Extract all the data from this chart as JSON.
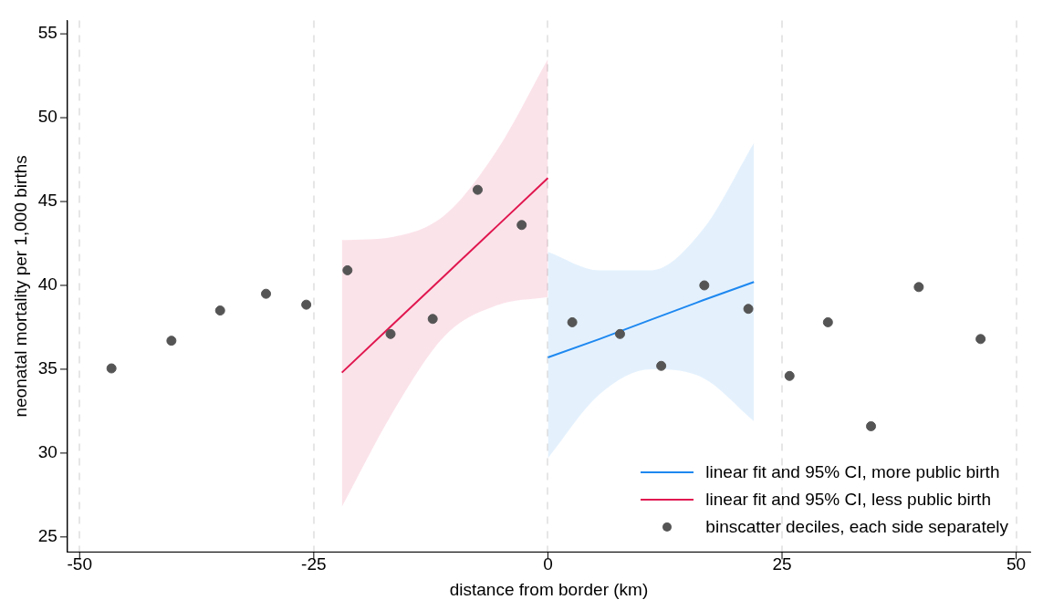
{
  "chart_data": {
    "type": "scatter",
    "xlabel": "distance from border (km)",
    "ylabel": "neonatal mortality per 1,000 births",
    "xlim": [
      -51.3,
      51.5
    ],
    "ylim": [
      24.1,
      55.8
    ],
    "xticks": [
      -50,
      -25,
      0,
      25,
      50
    ],
    "yticks": [
      25,
      30,
      35,
      40,
      45,
      50,
      55
    ],
    "grid": "x",
    "legend": "bottom right",
    "series": [
      {
        "name": "linear fit and 95% CI, more public birth",
        "type": "line",
        "color": "#1e88f0",
        "marker": "none",
        "x": [
          0,
          5.5,
          11,
          16.5,
          22
        ],
        "values": [
          35.7,
          36.8,
          37.95,
          39.1,
          40.2
        ],
        "lower": [
          29.7,
          33.5,
          35.0,
          34.5,
          31.9
        ],
        "upper": [
          42.0,
          40.9,
          40.9,
          43.3,
          48.5
        ]
      },
      {
        "name": "linear fit and 95% CI, less public birth",
        "type": "line",
        "color": "#e0174f",
        "marker": "none",
        "x": [
          -22,
          -16.5,
          -11,
          -5.5,
          0
        ],
        "values": [
          34.8,
          37.7,
          40.6,
          43.5,
          46.4
        ],
        "lower": [
          26.8,
          32.5,
          37.0,
          38.8,
          39.3
        ],
        "upper": [
          42.7,
          42.9,
          44.2,
          48.0,
          53.5
        ]
      },
      {
        "name": "binscatter deciles, each side separately",
        "type": "scatter",
        "color": "#555555",
        "marker": "circle",
        "x": [
          -46.6,
          -40.2,
          -35.0,
          -30.1,
          -25.8,
          -21.4,
          -16.8,
          -12.3,
          -7.5,
          -2.8,
          2.6,
          7.7,
          12.1,
          16.7,
          21.4,
          25.8,
          29.9,
          34.5,
          39.6,
          46.2
        ],
        "values": [
          35.05,
          36.7,
          38.5,
          39.5,
          38.85,
          40.9,
          37.1,
          38.0,
          45.7,
          43.6,
          37.8,
          37.1,
          35.2,
          40.0,
          38.6,
          34.6,
          37.8,
          31.6,
          39.9,
          36.8
        ]
      }
    ]
  }
}
